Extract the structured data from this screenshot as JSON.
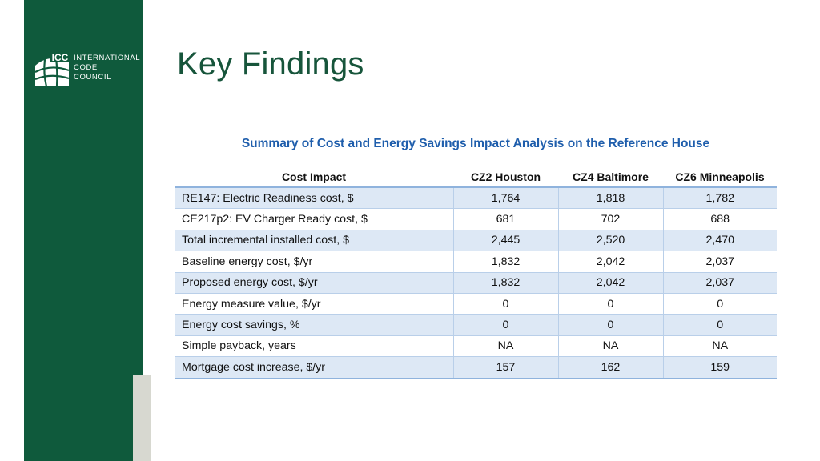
{
  "brand": {
    "logo_letters": "ICC",
    "name_lines": [
      "INTERNATIONAL",
      "CODE",
      "COUNCIL"
    ]
  },
  "slide": {
    "title": "Key Findings"
  },
  "table": {
    "title": "Summary of Cost and Energy Savings Impact Analysis on the Reference House",
    "headers": [
      "Cost Impact",
      "CZ2 Houston",
      "CZ4 Baltimore",
      "CZ6 Minneapolis"
    ],
    "rows": [
      [
        "RE147: Electric Readiness cost, $",
        "1,764",
        "1,818",
        "1,782"
      ],
      [
        "CE217p2: EV Charger Ready cost, $",
        "681",
        "702",
        "688"
      ],
      [
        "Total incremental installed cost, $",
        "2,445",
        "2,520",
        "2,470"
      ],
      [
        "Baseline energy cost, $/yr",
        "1,832",
        "2,042",
        "2,037"
      ],
      [
        "Proposed energy cost, $/yr",
        "1,832",
        "2,042",
        "2,037"
      ],
      [
        "Energy measure value, $/yr",
        "0",
        "0",
        "0"
      ],
      [
        "Energy cost savings, %",
        "0",
        "0",
        "0"
      ],
      [
        "Simple payback, years",
        "NA",
        "NA",
        "NA"
      ],
      [
        "Mortgage cost increase, $/yr",
        "157",
        "162",
        "159"
      ]
    ]
  },
  "colors": {
    "sidebar": "#0f5a3c",
    "title": "#17553b",
    "table_title": "#1f5eac",
    "row_shade": "#dde8f5"
  }
}
